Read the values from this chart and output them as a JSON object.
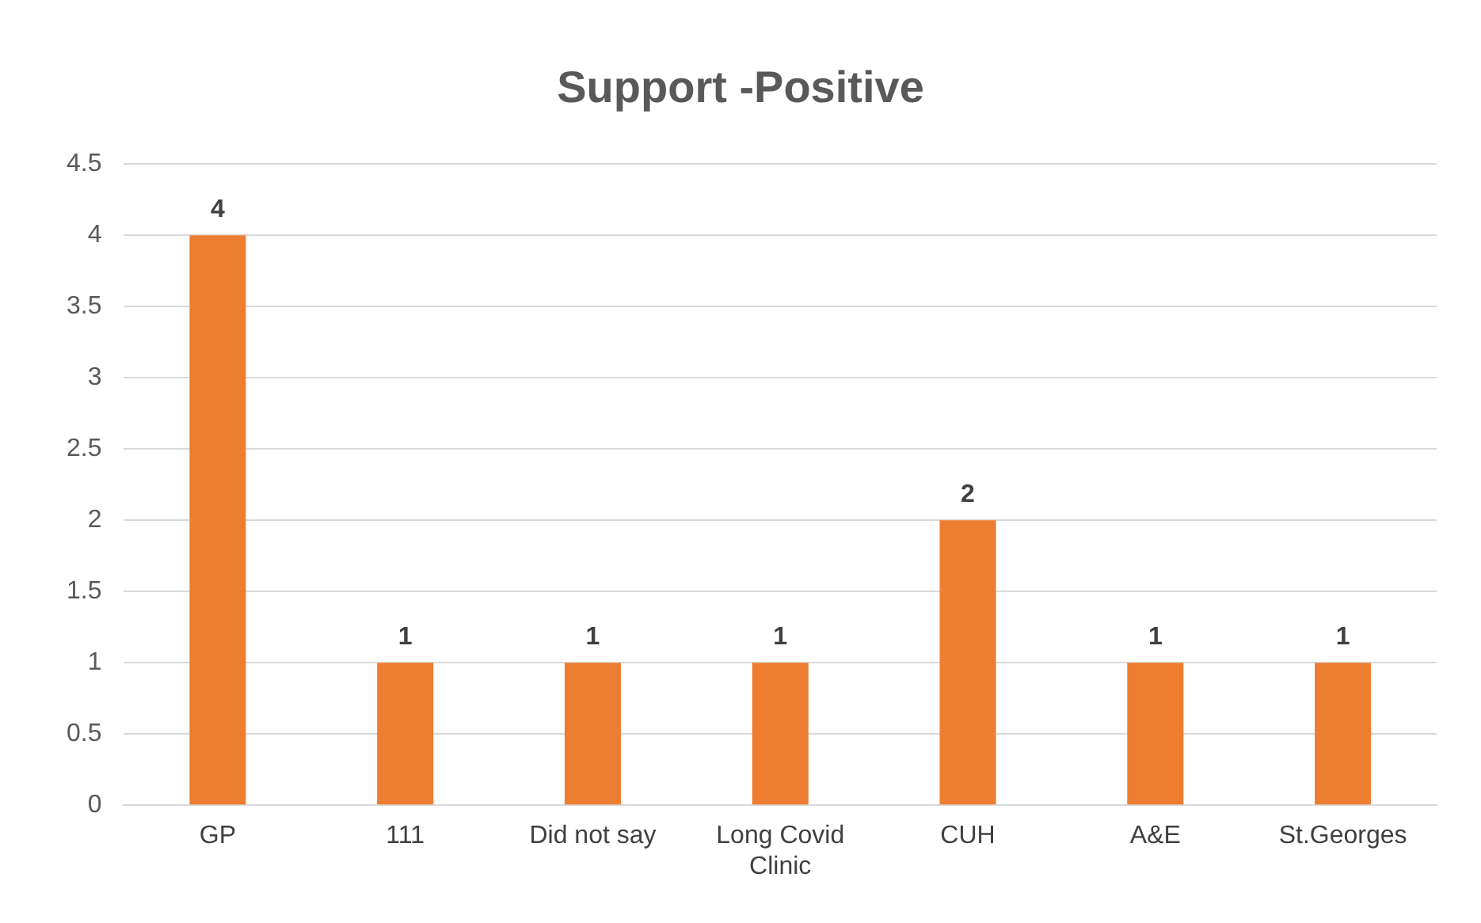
{
  "chart_data": {
    "type": "bar",
    "title": "Support -Positive",
    "categories": [
      "GP",
      "111",
      "Did not say",
      "Long Covid Clinic",
      "CUH",
      "A&E",
      "St.Georges"
    ],
    "values": [
      4,
      1,
      1,
      1,
      2,
      1,
      1
    ],
    "color": "#ed7d31",
    "ylim": [
      0,
      4.5
    ],
    "yticks": [
      0,
      0.5,
      1,
      1.5,
      2,
      2.5,
      3,
      3.5,
      4,
      4.5
    ],
    "grid": "y",
    "data_labels": true,
    "legend": false
  }
}
